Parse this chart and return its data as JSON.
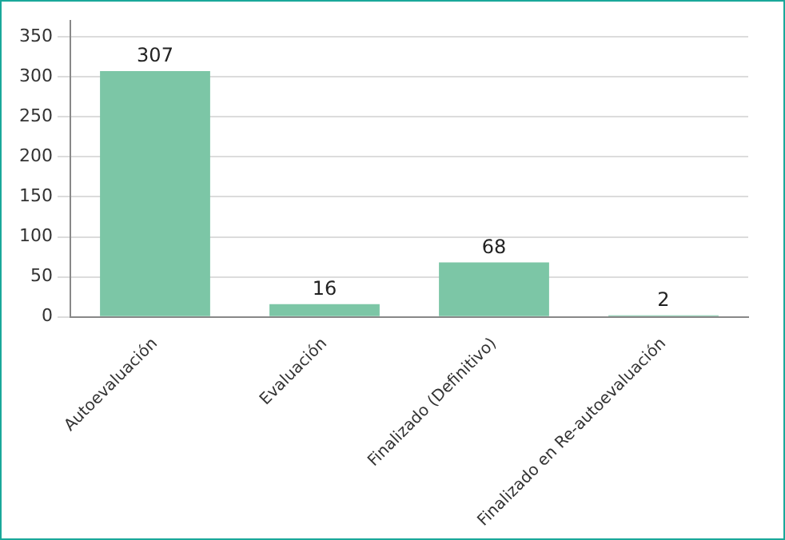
{
  "chart_data": {
    "type": "bar",
    "categories": [
      "Autoevaluación",
      "Evaluación",
      "Finalizado (Definitivo)",
      "Finalizado en Re-autoevaluación"
    ],
    "values": [
      307,
      16,
      68,
      2
    ],
    "color": "#7cc6a6",
    "ylim": [
      0,
      370
    ],
    "yticks": [
      0,
      50,
      100,
      150,
      200,
      250,
      300,
      350
    ],
    "grid": "y",
    "data_labels": true,
    "legend": false
  }
}
